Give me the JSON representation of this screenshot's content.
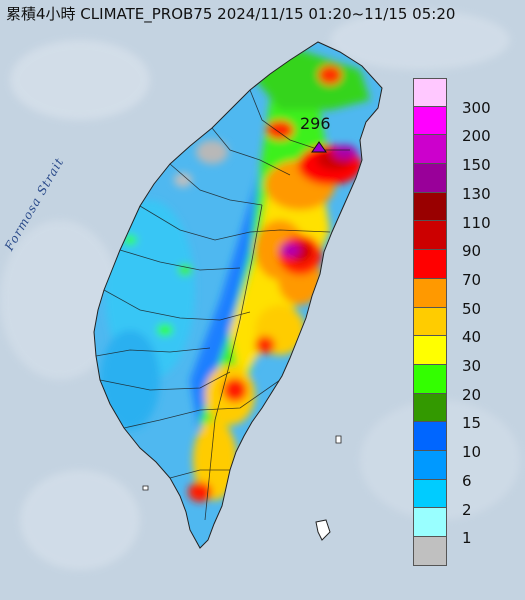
{
  "title": "累積4小時 CLIMATE_PROB75 2024/11/15 01:20~11/15 05:20",
  "strait_label": "Formosa Strait",
  "max_marker": {
    "value": "296"
  },
  "legend": {
    "levels": [
      {
        "label": "300",
        "color": "#ffc8ff"
      },
      {
        "label": "200",
        "color": "#ff00ff"
      },
      {
        "label": "150",
        "color": "#cc00cc"
      },
      {
        "label": "130",
        "color": "#990099"
      },
      {
        "label": "110",
        "color": "#990000"
      },
      {
        "label": "90",
        "color": "#cc0000"
      },
      {
        "label": "70",
        "color": "#ff0000"
      },
      {
        "label": "50",
        "color": "#ff9900"
      },
      {
        "label": "40",
        "color": "#ffcc00"
      },
      {
        "label": "30",
        "color": "#ffff00"
      },
      {
        "label": "20",
        "color": "#33ff00"
      },
      {
        "label": "15",
        "color": "#339900"
      },
      {
        "label": "10",
        "color": "#0066ff"
      },
      {
        "label": "6",
        "color": "#0099ff"
      },
      {
        "label": "2",
        "color": "#00ccff"
      },
      {
        "label": "1",
        "color": "#99ffff"
      },
      {
        "label": "",
        "color": "#c0c0c0"
      }
    ]
  }
}
